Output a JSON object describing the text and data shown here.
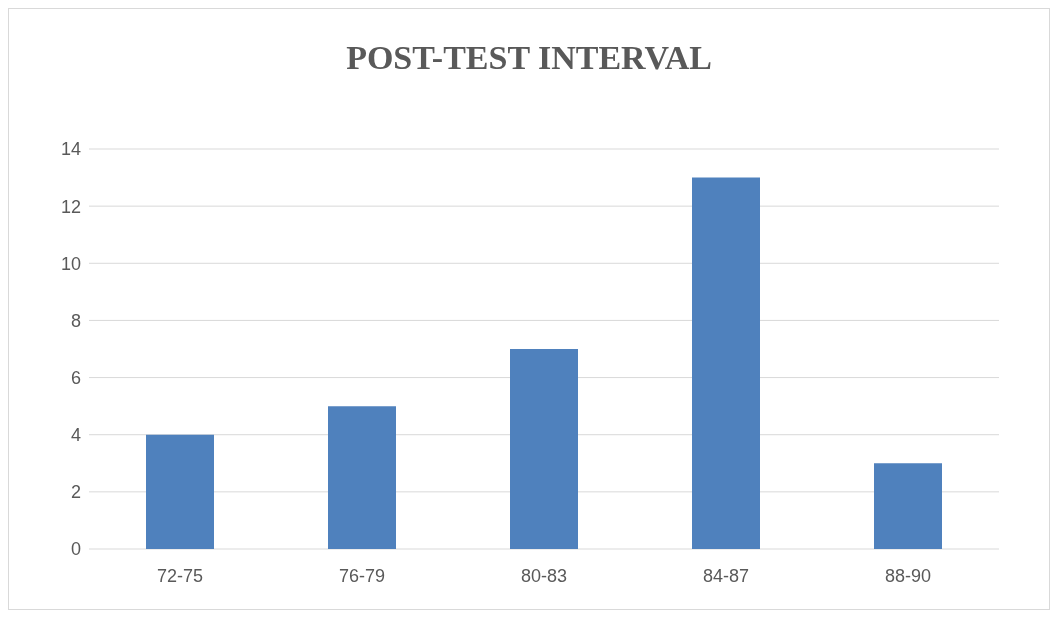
{
  "chart_data": {
    "type": "bar",
    "title": "POST-TEST INTERVAL",
    "categories": [
      "72-75",
      "76-79",
      "80-83",
      "84-87",
      "88-90"
    ],
    "values": [
      4,
      5,
      7,
      13,
      3
    ],
    "color": "#4f81bd",
    "ylim": [
      0,
      14
    ],
    "yticks": [
      0,
      2,
      4,
      6,
      8,
      10,
      12,
      14
    ],
    "grid": "y"
  }
}
